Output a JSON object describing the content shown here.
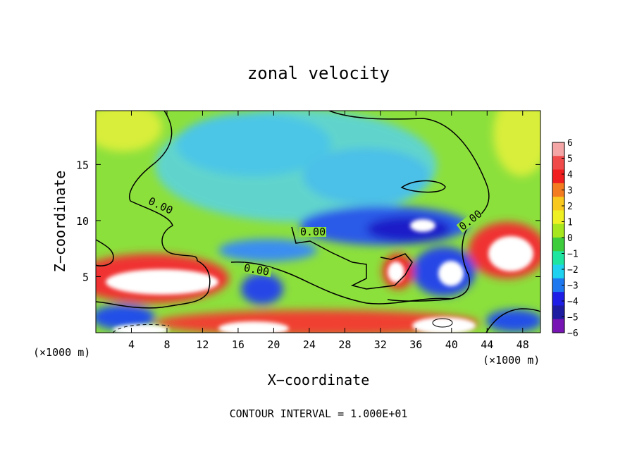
{
  "chart_data": {
    "type": "heatmap",
    "title": "zonal velocity",
    "xlabel": "X−coordinate",
    "ylabel": "Z−coordinate",
    "x_unit_left": "(×1000 m)",
    "x_unit_right": "(×1000 m)",
    "footer": "CONTOUR INTERVAL = 1.000E+01",
    "xlim": [
      0,
      50
    ],
    "ylim": [
      0,
      19.8
    ],
    "x_ticks": [
      4,
      8,
      12,
      16,
      20,
      24,
      28,
      32,
      36,
      40,
      44,
      48
    ],
    "x_tick_labels": [
      "4",
      "8",
      "12",
      "16",
      "20",
      "24",
      "28",
      "32",
      "36",
      "40",
      "44",
      "48"
    ],
    "y_ticks": [
      5,
      10,
      15
    ],
    "y_tick_labels": [
      "5",
      "10",
      "15"
    ],
    "contour_labels": [
      "0.00",
      "0.00",
      "0.00",
      "0.00"
    ],
    "colorbar": {
      "levels": [
        6,
        5,
        4,
        3,
        2,
        1,
        0,
        -1,
        -2,
        -3,
        -4,
        -5,
        -6
      ],
      "labels": [
        "6",
        "5",
        "4",
        "3",
        "2",
        "1",
        "0",
        "−1",
        "−2",
        "−3",
        "−4",
        "−5",
        "−6"
      ],
      "colors": [
        "#f4a6a6",
        "#f04a4a",
        "#f01e1e",
        "#f47c20",
        "#f8c81e",
        "#eef024",
        "#a6e61e",
        "#3ccc3c",
        "#1ee6a0",
        "#1ed2f0",
        "#1e78f0",
        "#1e1ee6",
        "#1e1ca0",
        "#7814b4"
      ]
    },
    "regions": [
      {
        "name": "background-positive",
        "color": "#8ce03c"
      },
      {
        "name": "upper-negative",
        "color": "#5ad2d2"
      },
      {
        "name": "jet-negative",
        "color": "#2846e6"
      },
      {
        "name": "lower-positive",
        "color": "#f02828"
      },
      {
        "name": "saturated-positive",
        "color": "#ffffff"
      }
    ]
  }
}
